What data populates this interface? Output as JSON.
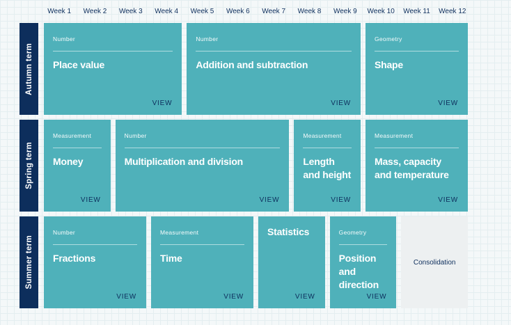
{
  "palette": {
    "navy": "#0d2e5c",
    "teal": "#4fb1ba",
    "consolidation_bg": "#edf0f1",
    "background": "#f4f8f9",
    "grid_line": "#e4eef0",
    "card_text": "#ffffff"
  },
  "week_header": {
    "labels": [
      "Week 1",
      "Week 2",
      "Week 3",
      "Week 4",
      "Week 5",
      "Week 6",
      "Week 7",
      "Week 8",
      "Week 9",
      "Week 10",
      "Week 11",
      "Week 12"
    ]
  },
  "view_label": "VIEW",
  "terms": [
    {
      "name": "Autumn term",
      "cards": [
        {
          "type": "topic",
          "category": "Number",
          "title": "Place value",
          "start": 1,
          "span": 4
        },
        {
          "type": "topic",
          "category": "Number",
          "title": "Addition and subtraction",
          "start": 5,
          "span": 5
        },
        {
          "type": "topic",
          "category": "Geometry",
          "title": "Shape",
          "start": 10,
          "span": 3
        }
      ]
    },
    {
      "name": "Spring term",
      "cards": [
        {
          "type": "topic",
          "category": "Measurement",
          "title": "Money",
          "start": 1,
          "span": 2
        },
        {
          "type": "topic",
          "category": "Number",
          "title": "Multiplication and division",
          "start": 3,
          "span": 5
        },
        {
          "type": "topic",
          "category": "Measurement",
          "title": "Length and height",
          "start": 8,
          "span": 2
        },
        {
          "type": "topic",
          "category": "Measurement",
          "title": "Mass, capacity and temperature",
          "start": 10,
          "span": 3
        }
      ]
    },
    {
      "name": "Summer term",
      "cards": [
        {
          "type": "topic",
          "category": "Number",
          "title": "Fractions",
          "start": 1,
          "span": 3
        },
        {
          "type": "topic",
          "category": "Measurement",
          "title": "Time",
          "start": 4,
          "span": 3
        },
        {
          "type": "topic",
          "category": null,
          "title": "Statistics",
          "start": 7,
          "span": 2
        },
        {
          "type": "topic",
          "category": "Geometry",
          "title": "Position and direction",
          "start": 9,
          "span": 2
        },
        {
          "type": "consolidation",
          "title": "Consolidation",
          "start": 11,
          "span": 2
        }
      ]
    }
  ]
}
